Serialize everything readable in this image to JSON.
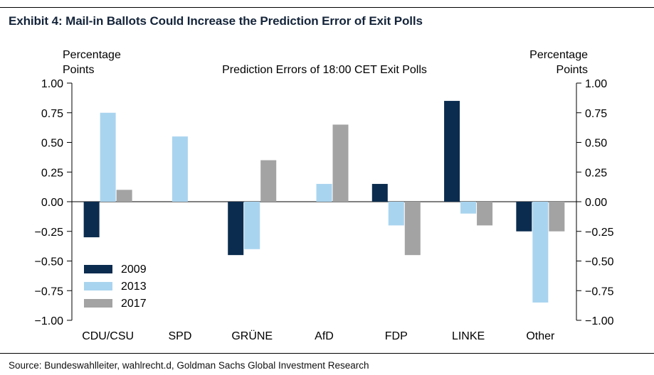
{
  "exhibit_title": "Exhibit 4: Mail-in Ballots Could Increase the Prediction Error of Exit Polls",
  "source": "Source: Bundeswahlleiter, wahlrecht.d, Goldman Sachs Global Investment Research",
  "chart_data": {
    "type": "bar",
    "title": "Prediction Errors of 18:00 CET Exit Polls",
    "ylabel_left": [
      "Percentage",
      "Points"
    ],
    "ylabel_right": [
      "Percentage",
      "Points"
    ],
    "xlabel": "",
    "ylim": [
      -1.0,
      1.0
    ],
    "yticks": [
      1.0,
      0.75,
      0.5,
      0.25,
      0.0,
      -0.25,
      -0.5,
      -0.75,
      -1.0
    ],
    "ytick_labels": [
      "1.00",
      "0.75",
      "0.50",
      "0.25",
      "0.00",
      "−0.25",
      "−0.50",
      "−0.75",
      "−1.00"
    ],
    "categories": [
      "CDU/CSU",
      "SPD",
      "GRÜNE",
      "AfD",
      "FDP",
      "LINKE",
      "Other"
    ],
    "series": [
      {
        "name": "2009",
        "color": "#0b2c4e",
        "values": [
          -0.3,
          0.0,
          -0.45,
          0.0,
          0.15,
          0.85,
          -0.25
        ]
      },
      {
        "name": "2013",
        "color": "#a9d4ef",
        "values": [
          0.75,
          0.55,
          -0.4,
          0.15,
          -0.2,
          -0.1,
          -0.85
        ]
      },
      {
        "name": "2017",
        "color": "#a3a3a3",
        "values": [
          0.1,
          0.0,
          0.35,
          0.65,
          -0.45,
          -0.2,
          -0.25
        ]
      }
    ],
    "legend_position": "bottom-left",
    "grid": false
  }
}
